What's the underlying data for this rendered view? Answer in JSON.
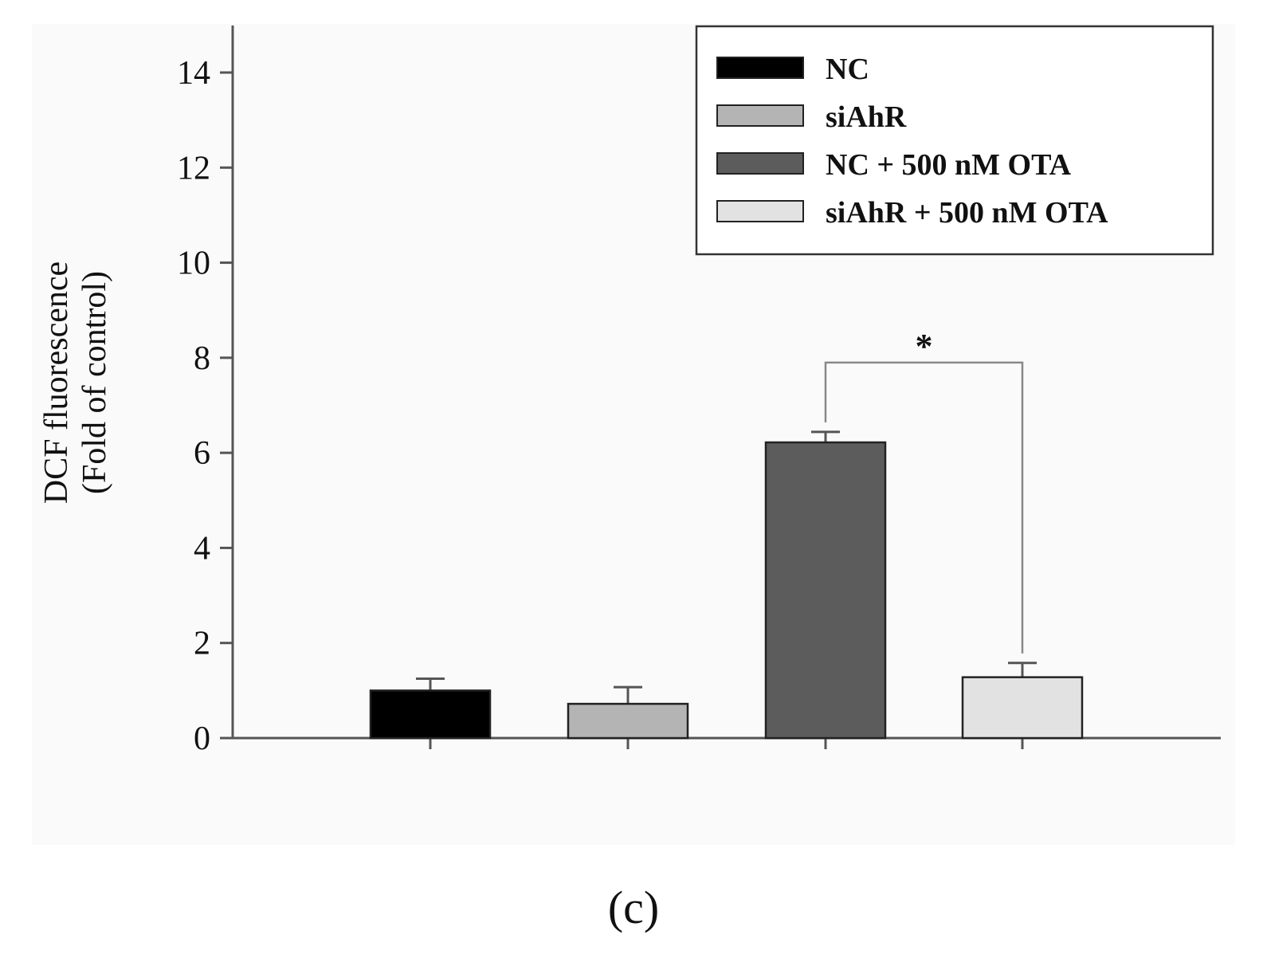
{
  "chart_data": {
    "type": "bar",
    "categories": [
      "NC",
      "siAhR",
      "NC + 500 nM OTA",
      "siAhR + 500 nM OTA"
    ],
    "values": [
      1.0,
      0.72,
      6.22,
      1.28
    ],
    "errors": [
      0.25,
      0.35,
      0.22,
      0.3
    ],
    "colors": [
      "#000000",
      "#b4b4b4",
      "#5c5c5c",
      "#e2e2e2"
    ],
    "ylabel_line1": "DCF fluorescence",
    "ylabel_line2": "(Fold of control)",
    "ylim": [
      0,
      15
    ],
    "yticks": [
      0,
      2,
      4,
      6,
      8,
      10,
      12,
      14
    ],
    "legend_position": "top-right",
    "legend": [
      "NC",
      "siAhR",
      "NC + 500 nM OTA",
      "siAhR + 500 nM OTA"
    ],
    "significance": {
      "from": 2,
      "to": 3,
      "y": 7.9,
      "mark": "*"
    },
    "panel_label": "(c)"
  }
}
